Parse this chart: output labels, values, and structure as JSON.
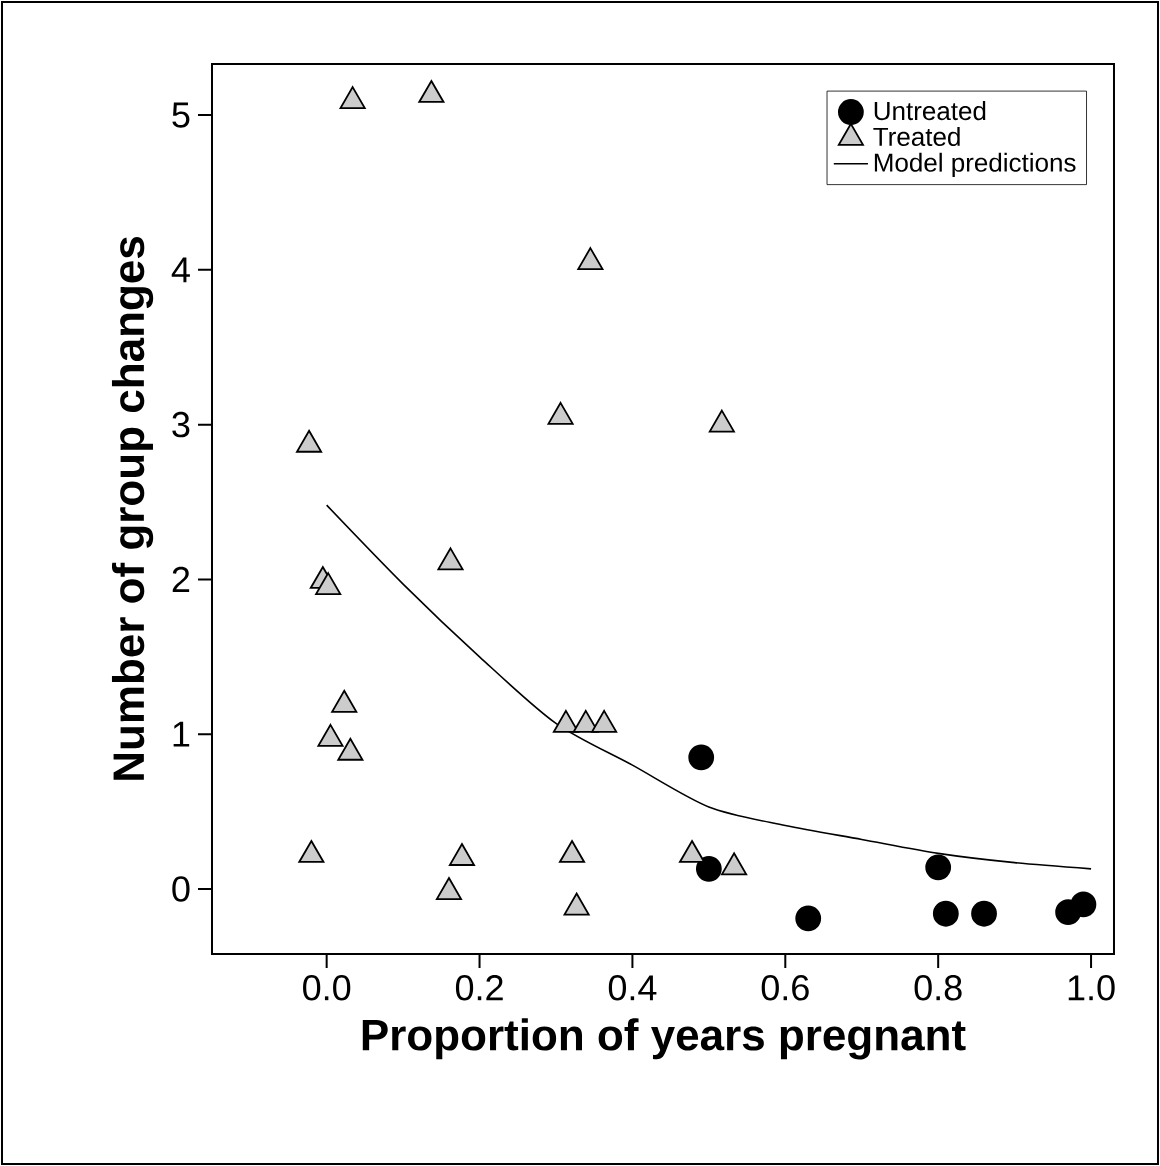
{
  "chart_data": {
    "type": "scatter",
    "xlabel": "Proportion of years pregnant",
    "ylabel": "Number of group changes",
    "xlim": [
      -0.15,
      1.03
    ],
    "ylim": [
      -0.42,
      5.33
    ],
    "xticks": [
      {
        "value": 0,
        "label": "0.0"
      },
      0.2,
      0.4,
      0.6,
      0.8,
      {
        "value": 1,
        "label": "1.0"
      }
    ],
    "yticks": [
      0,
      1,
      2,
      3,
      4,
      5
    ],
    "legend": "top right",
    "series": [
      {
        "name": "Untreated",
        "color": "#000000",
        "marker": "circle",
        "x": [
          0.49,
          0.5,
          0.63,
          0.8,
          0.81,
          0.86,
          0.97,
          0.99
        ],
        "values": [
          0.85,
          0.13,
          -0.19,
          0.14,
          -0.16,
          -0.16,
          -0.15,
          -0.1
        ]
      },
      {
        "name": "Treated",
        "color": "#cccccc",
        "marker": "triangle",
        "x": [
          0.034,
          0.137,
          0.345,
          0.306,
          0.517,
          -0.023,
          0.162,
          -0.005,
          0.002,
          0.023,
          0.005,
          0.031,
          0.313,
          0.339,
          0.363,
          -0.02,
          0.177,
          0.16,
          0.321,
          0.327,
          0.478,
          0.533
        ],
        "values": [
          5.09,
          5.13,
          4.05,
          3.05,
          3.0,
          2.87,
          2.11,
          1.99,
          1.95,
          1.19,
          0.97,
          0.88,
          1.06,
          1.06,
          1.06,
          0.22,
          0.2,
          -0.02,
          0.22,
          -0.12,
          0.22,
          0.14
        ]
      },
      {
        "name": "Model predictions",
        "type": "line",
        "color": "#000000",
        "marker": "none",
        "line_style": "solid",
        "x": [
          0,
          0.1,
          0.2,
          0.3,
          0.4,
          0.5,
          0.6,
          0.7,
          0.8,
          0.9,
          1.0
        ],
        "values": [
          2.48,
          1.97,
          1.5,
          1.07,
          0.8,
          0.53,
          0.41,
          0.32,
          0.23,
          0.17,
          0.13
        ]
      }
    ]
  }
}
